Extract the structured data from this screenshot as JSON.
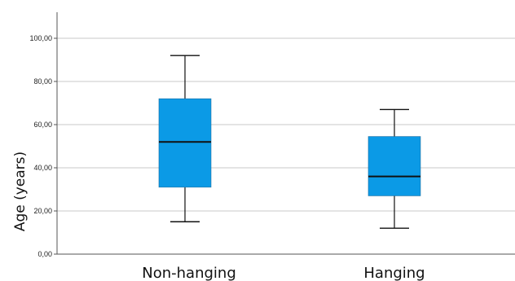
{
  "chart_data": {
    "type": "boxplot",
    "title": "",
    "xlabel": "",
    "ylabel": "Age (years)",
    "ylim": [
      0,
      110
    ],
    "yticks": [
      0,
      20,
      40,
      60,
      80,
      100
    ],
    "ytick_labels": [
      "0,00",
      "20,00",
      "40,00",
      "60,00",
      "80,00",
      "100,00"
    ],
    "grid": true,
    "box_color": "#0B9AE6",
    "median_color": "#111111",
    "categories": [
      "Non-hanging",
      "Hanging"
    ],
    "boxes": [
      {
        "category": "Non-hanging",
        "min": 15,
        "q1": 31,
        "median": 52,
        "q3": 72,
        "max": 92
      },
      {
        "category": "Hanging",
        "min": 12,
        "q1": 27,
        "median": 36,
        "q3": 54.5,
        "max": 67
      }
    ]
  }
}
